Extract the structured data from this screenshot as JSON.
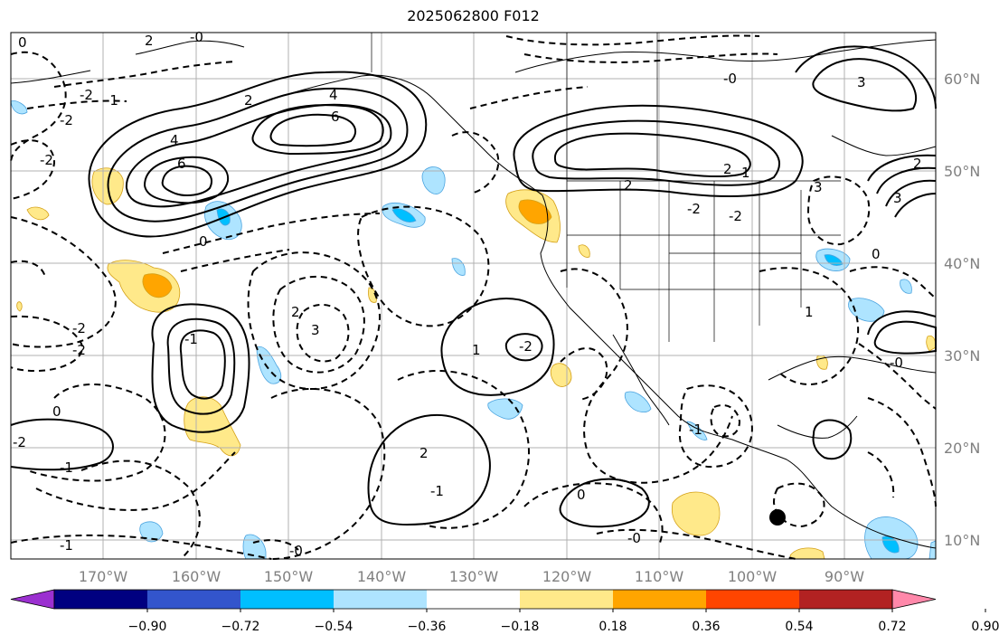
{
  "title": "2025062800 F012",
  "map": {
    "lon_labels": [
      "170°W",
      "160°W",
      "150°W",
      "140°W",
      "130°W",
      "120°W",
      "110°W",
      "100°W",
      "90°W"
    ],
    "lat_labels": [
      "60°N",
      "50°N",
      "40°N",
      "30°N",
      "20°N",
      "10°N"
    ],
    "contour_labels": [
      "0",
      "-2",
      "-1",
      "-2",
      "2",
      "-2",
      "-0",
      "2",
      "3",
      "4",
      "6",
      "4",
      "6",
      "0",
      "-2",
      "1",
      "-2",
      "-2",
      "2",
      "3",
      "-1",
      "0",
      "-2",
      "-1",
      "1",
      "-2",
      "2",
      "3",
      "-1",
      "-0",
      "2",
      "-2",
      "2",
      "0",
      "1",
      "-1",
      "-0",
      "0",
      "-0",
      "2",
      "3",
      "-0",
      "-1"
    ]
  },
  "colorbar": {
    "tick_labels": [
      "−0.90",
      "−0.72",
      "−0.54",
      "−0.36",
      "−0.18",
      "0.18",
      "0.36",
      "0.54",
      "0.72",
      "0.90"
    ],
    "colors": [
      "#9b30d0",
      "#000080",
      "#3355cc",
      "#00bfff",
      "#aee4ff",
      "#ffffff",
      "#ffe98a",
      "#ffa500",
      "#ff4500",
      "#b22222",
      "#ff88aa"
    ]
  }
}
